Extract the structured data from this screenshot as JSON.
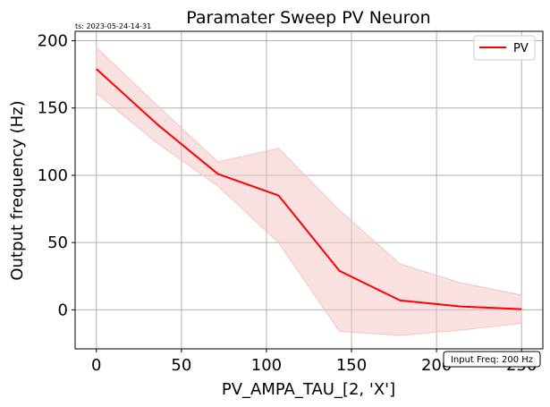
{
  "timestamp": "ts: 2023-05-24-14-31",
  "annotation": "Input Freq: 200 Hz",
  "colors": {
    "line": "#ff0000",
    "band": "#f4c4c4",
    "grid": "#b0b0b0"
  },
  "chart_data": {
    "type": "line",
    "title": "Paramater Sweep PV Neuron",
    "xlabel": "PV_AMPA_TAU_[2, 'X']",
    "ylabel": "Output frequency (Hz)",
    "xlim": [
      -12.5,
      262.5
    ],
    "ylim": [
      -29,
      207
    ],
    "xticks": [
      0,
      50,
      100,
      150,
      200,
      250
    ],
    "yticks": [
      0,
      50,
      100,
      150,
      200
    ],
    "grid": true,
    "legend_position": "top-right",
    "series": [
      {
        "name": "PV",
        "x": [
          0,
          35.7,
          71.4,
          107.1,
          142.9,
          178.6,
          214.3,
          250
        ],
        "y": [
          179,
          138,
          101,
          85,
          29,
          7,
          2.5,
          0.5
        ],
        "band_upper": [
          195,
          152,
          110,
          120,
          74,
          34,
          20,
          11
        ],
        "band_lower": [
          161,
          124,
          92,
          50,
          -16,
          -19,
          -15,
          -10
        ]
      }
    ]
  }
}
